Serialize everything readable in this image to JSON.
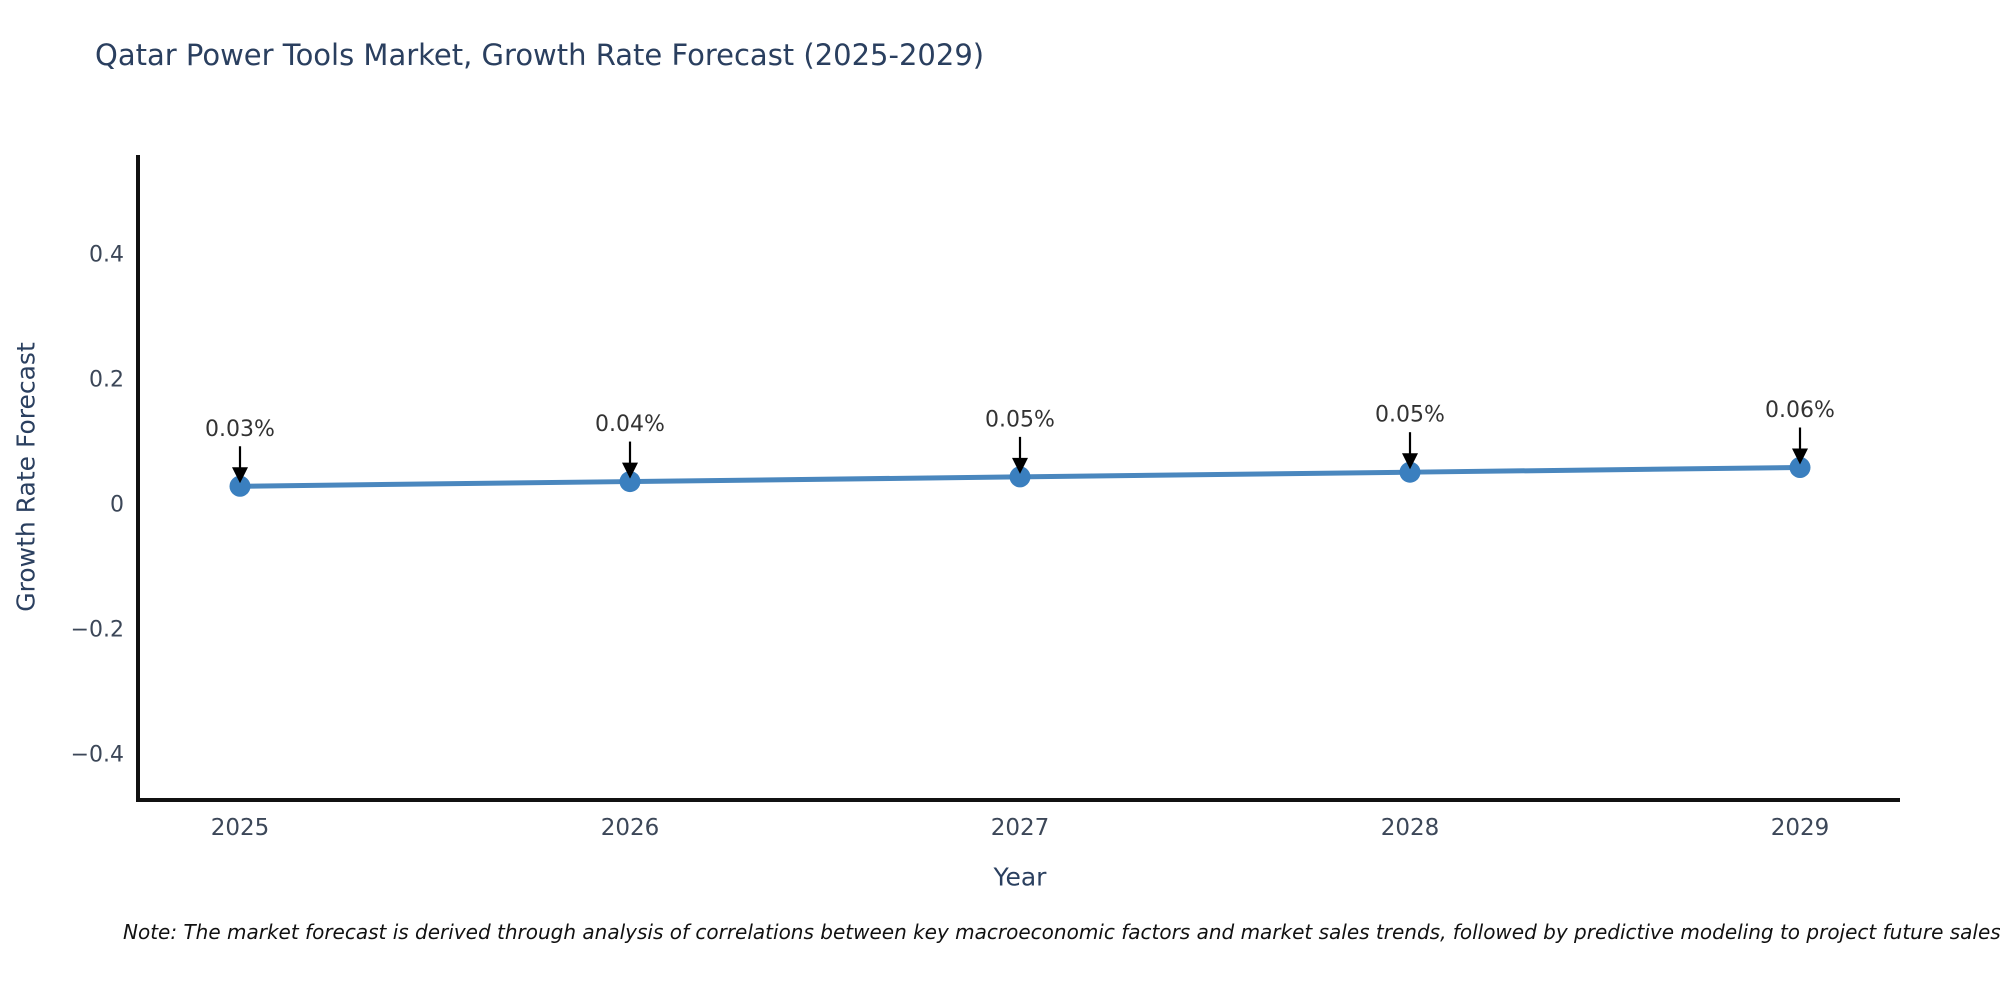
{
  "chart_data": {
    "type": "line",
    "title": "Qatar Power Tools Market, Growth Rate Forecast (2025-2029)",
    "xlabel": "Year",
    "ylabel": "Growth Rate Forecast",
    "x": [
      2025,
      2026,
      2027,
      2028,
      2029
    ],
    "values": [
      0.03,
      0.0375,
      0.045,
      0.0525,
      0.06
    ],
    "point_labels": [
      "0.03%",
      "0.04%",
      "0.05%",
      "0.05%",
      "0.06%"
    ],
    "x_tick_labels": [
      "2025",
      "2026",
      "2027",
      "2028",
      "2029"
    ],
    "y_ticks": [
      -0.4,
      -0.2,
      0,
      0.2,
      0.4
    ],
    "y_tick_labels": [
      "−0.4",
      "−0.2",
      "0",
      "0.2",
      "0.4"
    ],
    "ylim": [
      -0.47,
      0.56
    ],
    "grid": false,
    "legend_position": "none",
    "line_color": "#4a87be",
    "marker_color": "#3a7fbf",
    "arrow_color": "#000000"
  },
  "note": {
    "text": "Note: The market forecast is derived through analysis of correlations between key macroeconomic factors and market sales trends, followed by predictive modeling to project future sales"
  },
  "colors": {
    "title": "#2a3f5f",
    "tick_label": "#3c4758",
    "annotation_text": "#333333",
    "spine": "#111111",
    "background": "#ffffff"
  }
}
